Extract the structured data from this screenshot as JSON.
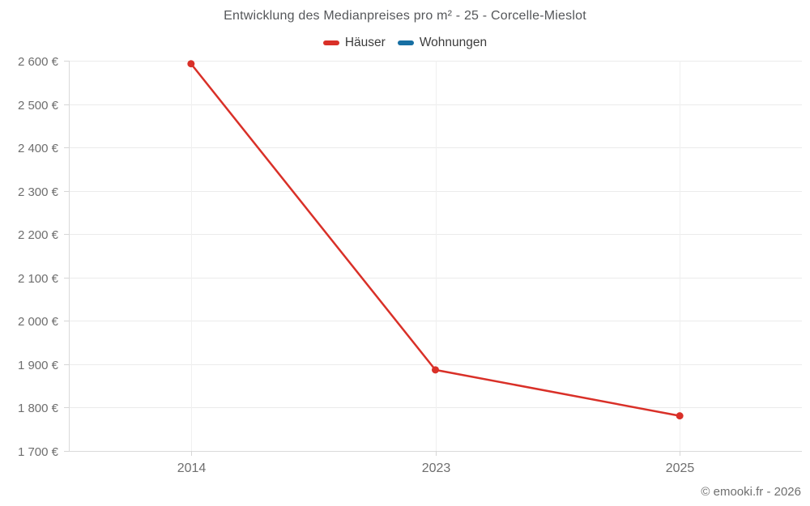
{
  "chart_data": {
    "type": "line",
    "title": "Entwicklung des Medianpreises pro m² - 25 - Corcelle-Mieslot",
    "categories": [
      "2014",
      "2023",
      "2025"
    ],
    "series": [
      {
        "name": "Häuser",
        "color": "#d93028",
        "values": [
          2593,
          1887,
          1781
        ]
      },
      {
        "name": "Wohnungen",
        "color": "#176fa3",
        "values": []
      }
    ],
    "xlabel": "",
    "ylabel": "",
    "ylim": [
      1700,
      2600
    ],
    "ytick_step": 100,
    "ytick_format": "space-thousands-euro",
    "ytick_labels": [
      "1 700 €",
      "1 800 €",
      "1 900 €",
      "2 000 €",
      "2 100 €",
      "2 200 €",
      "2 300 €",
      "2 400 €",
      "2 500 €",
      "2 600 €"
    ],
    "grid": true,
    "legend_position": "top"
  },
  "footer": {
    "copyright": "© emooki.fr - 2026"
  }
}
